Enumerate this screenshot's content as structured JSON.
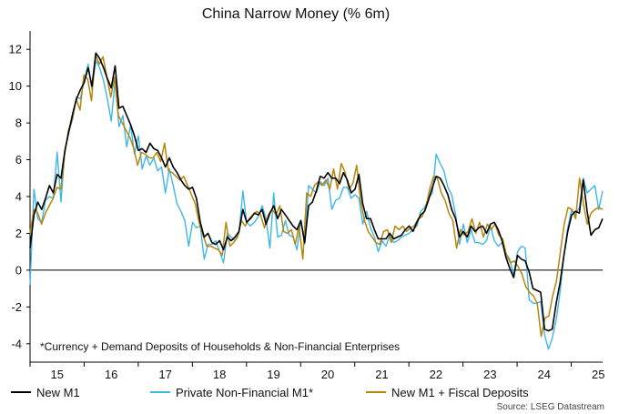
{
  "chart_data": {
    "type": "line",
    "title": "China Narrow Money (% 6m)",
    "annotation": "*Currency + Demand Deposits of Households & Non-Financial Enterprises",
    "source": "Source: LSEG Datastream",
    "x_start": 2015.0,
    "x_end": 2025.58,
    "xlim": [
      2015.0,
      2025.58
    ],
    "ylim": [
      -5,
      13
    ],
    "y_ticks": [
      12,
      10,
      8,
      6,
      4,
      2,
      0,
      -2,
      -4
    ],
    "x_tick_labels": [
      "15",
      "16",
      "17",
      "18",
      "19",
      "20",
      "21",
      "22",
      "23",
      "24",
      "25"
    ],
    "zero_line": true,
    "grid": false,
    "legend_position": "bottom",
    "series": [
      {
        "name": "New M1",
        "color": "#000000",
        "values": [
          1.2,
          3.0,
          3.7,
          3.3,
          3.9,
          4.6,
          4.2,
          5.2,
          5.0,
          6.5,
          7.5,
          8.5,
          9.3,
          9.8,
          10.2,
          11.0,
          10.0,
          11.8,
          11.5,
          11.0,
          10.4,
          9.9,
          11.1,
          8.8,
          8.9,
          8.4,
          7.9,
          7.3,
          6.5,
          6.6,
          6.4,
          6.9,
          6.6,
          6.5,
          6.1,
          5.6,
          6.1,
          5.6,
          5.3,
          4.9,
          4.6,
          4.4,
          4.5,
          3.9,
          2.6,
          1.8,
          2.0,
          1.5,
          1.4,
          1.6,
          1.1,
          1.8,
          1.6,
          1.8,
          2.1,
          3.3,
          2.6,
          2.8,
          3.1,
          3.0,
          3.3,
          2.5,
          3.1,
          3.5,
          2.8,
          3.3,
          3.0,
          2.7,
          2.4,
          2.2,
          2.7,
          1.5,
          3.5,
          3.7,
          4.3,
          5.1,
          5.0,
          5.3,
          5.0,
          5.0,
          4.7,
          5.3,
          4.9,
          4.2,
          4.4,
          5.2,
          3.6,
          2.8,
          2.8,
          2.2,
          1.7,
          1.7,
          1.7,
          2.0,
          1.7,
          1.8,
          1.9,
          2.2,
          2.4,
          2.1,
          2.6,
          3.0,
          3.2,
          3.8,
          4.5,
          5.1,
          5.0,
          4.6,
          4.1,
          3.3,
          2.8,
          1.8,
          2.1,
          1.8,
          2.4,
          2.1,
          2.3,
          2.4,
          2.0,
          2.5,
          2.6,
          2.2,
          1.6,
          0.7,
          0.1,
          -0.4,
          0.8,
          0.6,
          0.5,
          -0.1,
          -1.0,
          -1.1,
          -1.2,
          -3.2,
          -3.3,
          -3.2,
          -1.8,
          -0.7,
          0.8,
          2.1,
          3.0,
          3.2,
          3.1,
          4.9,
          3.2,
          1.9,
          2.2,
          2.3,
          2.8
        ]
      },
      {
        "name": "Private Non-Financial M1*",
        "color": "#3db7e9",
        "values": [
          -0.8,
          4.4,
          2.8,
          2.6,
          3.8,
          4.0,
          3.9,
          6.4,
          3.7,
          6.5,
          7.5,
          8.2,
          9.4,
          9.3,
          10.3,
          11.2,
          9.8,
          11.4,
          11.0,
          10.3,
          9.3,
          8.1,
          10.3,
          7.8,
          8.4,
          6.7,
          7.9,
          6.3,
          7.3,
          5.5,
          6.2,
          5.7,
          6.1,
          5.4,
          5.6,
          4.2,
          5.5,
          4.6,
          3.6,
          3.2,
          2.7,
          1.3,
          2.6,
          2.3,
          2.4,
          0.6,
          1.4,
          1.4,
          1.6,
          1.0,
          0.4,
          2.0,
          1.8,
          1.6,
          2.0,
          4.3,
          2.6,
          2.4,
          2.6,
          2.9,
          3.5,
          2.8,
          1.2,
          4.2,
          1.8,
          1.9,
          2.7,
          1.9,
          1.8,
          1.1,
          2.7,
          1.4,
          4.6,
          4.4,
          4.2,
          4.8,
          4.6,
          5.0,
          3.3,
          3.8,
          3.9,
          4.5,
          4.5,
          3.9,
          4.1,
          3.9,
          2.5,
          3.2,
          2.3,
          1.8,
          1.0,
          1.6,
          1.3,
          1.9,
          1.5,
          1.6,
          1.8,
          1.9,
          2.0,
          2.2,
          2.4,
          3.2,
          3.4,
          3.9,
          4.2,
          6.3,
          5.8,
          5.4,
          4.5,
          4.1,
          3.0,
          1.4,
          2.5,
          1.5,
          2.2,
          1.5,
          1.5,
          1.4,
          1.6,
          2.4,
          1.6,
          1.3,
          1.5,
          0.9,
          0.6,
          -0.3,
          1.0,
          1.3,
          1.2,
          -1.6,
          -1.8,
          -1.8,
          -1.7,
          -3.5,
          -4.3,
          -3.7,
          -2.7,
          -1.2,
          0.8,
          2.3,
          3.3,
          3.0,
          3.4,
          5.0,
          4.2,
          4.4,
          4.6,
          3.3,
          4.3
        ]
      },
      {
        "name": "New M1 + Fiscal Deposits",
        "color": "#b8860b",
        "values": [
          2.0,
          3.3,
          3.1,
          2.5,
          3.1,
          3.5,
          3.9,
          4.5,
          4.4,
          6.3,
          7.6,
          8.2,
          9.3,
          8.7,
          10.6,
          10.4,
          9.2,
          11.7,
          11.2,
          11.6,
          10.5,
          9.4,
          10.5,
          8.4,
          8.0,
          7.6,
          7.2,
          6.6,
          5.7,
          6.4,
          6.3,
          6.1,
          6.1,
          6.4,
          5.9,
          6.9,
          5.4,
          5.3,
          5.1,
          4.9,
          5.1,
          4.6,
          4.1,
          3.6,
          2.6,
          1.9,
          1.3,
          1.3,
          1.2,
          1.1,
          0.8,
          2.6,
          1.3,
          1.5,
          1.8,
          2.7,
          2.4,
          2.8,
          3.0,
          3.2,
          3.0,
          2.3,
          3.0,
          3.3,
          3.0,
          3.5,
          2.1,
          2.0,
          2.2,
          1.4,
          2.4,
          0.6,
          4.2,
          4.0,
          4.6,
          4.8,
          4.6,
          4.9,
          4.4,
          5.5,
          4.4,
          5.8,
          5.3,
          4.4,
          4.7,
          5.7,
          3.8,
          2.7,
          2.1,
          1.8,
          1.5,
          1.4,
          2.1,
          2.2,
          1.5,
          2.4,
          2.2,
          2.4,
          2.1,
          2.3,
          2.4,
          2.8,
          2.9,
          3.4,
          4.4,
          5.1,
          5.0,
          4.2,
          3.8,
          3.1,
          2.7,
          1.2,
          2.2,
          1.9,
          2.1,
          2.8,
          2.0,
          2.6,
          1.8,
          2.5,
          2.2,
          2.5,
          1.9,
          1.7,
          0.8,
          0.4,
          0.5,
          0.2,
          -0.2,
          -0.9,
          -1.2,
          -1.4,
          -1.8,
          -3.6,
          -2.6,
          -2.5,
          -1.4,
          -0.6,
          1.0,
          2.5,
          3.4,
          3.3,
          2.8,
          5.0,
          3.6,
          2.5,
          3.1,
          3.3,
          3.4,
          3.3
        ]
      }
    ]
  }
}
